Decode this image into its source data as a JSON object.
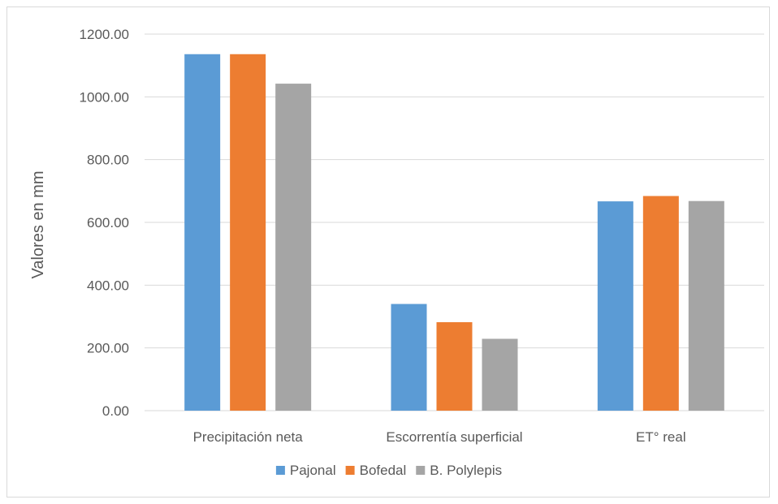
{
  "chart_data": {
    "type": "bar",
    "title": "",
    "xlabel": "",
    "ylabel": "Valores en mm",
    "ylim": [
      0,
      1200
    ],
    "ytick_labels": [
      "0.00",
      "200.00",
      "400.00",
      "600.00",
      "800.00",
      "1000.00",
      "1200.00"
    ],
    "yticks": [
      0,
      200,
      400,
      600,
      800,
      1000,
      1200
    ],
    "grid": true,
    "legend_position": "bottom",
    "categories": [
      "Precipitación neta",
      "Escorrentía superficial",
      "ET° real"
    ],
    "series": [
      {
        "name": "Pajonal",
        "color": "#5B9BD5",
        "values": [
          1136,
          340,
          667
        ]
      },
      {
        "name": "Bofedal",
        "color": "#ED7D31",
        "values": [
          1136,
          282,
          684
        ]
      },
      {
        "name": "B. Polylepis",
        "color": "#A5A5A5",
        "values": [
          1042,
          229,
          668
        ]
      }
    ]
  }
}
